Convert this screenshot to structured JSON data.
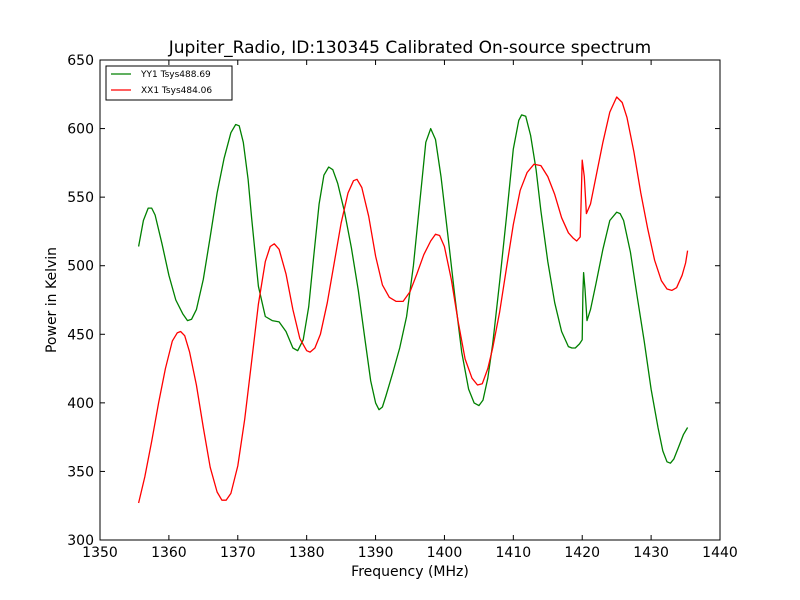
{
  "chart_data": {
    "type": "line",
    "title": "Jupiter_Radio, ID:130345 Calibrated On-source spectrum",
    "xlabel": "Frequency (MHz)",
    "ylabel": "Power in Kelvin",
    "xlim": [
      1350,
      1440
    ],
    "ylim": [
      300,
      650
    ],
    "xticks": [
      1350,
      1360,
      1370,
      1380,
      1390,
      1400,
      1410,
      1420,
      1430,
      1440
    ],
    "yticks": [
      300,
      350,
      400,
      450,
      500,
      550,
      600,
      650
    ],
    "grid": false,
    "legend_position": "top-left",
    "series": [
      {
        "name": "YY1 Tsys488.69",
        "color": "#008000",
        "points": [
          [
            1355.6,
            514
          ],
          [
            1356.3,
            533
          ],
          [
            1357.0,
            542
          ],
          [
            1357.5,
            542
          ],
          [
            1358.0,
            537
          ],
          [
            1359.0,
            516
          ],
          [
            1360.0,
            493
          ],
          [
            1361.0,
            475
          ],
          [
            1362.0,
            465
          ],
          [
            1362.7,
            460
          ],
          [
            1363.3,
            461
          ],
          [
            1364.0,
            468
          ],
          [
            1365.0,
            490
          ],
          [
            1366.0,
            521
          ],
          [
            1367.0,
            553
          ],
          [
            1368.0,
            578
          ],
          [
            1369.0,
            597
          ],
          [
            1369.7,
            603
          ],
          [
            1370.2,
            602
          ],
          [
            1370.8,
            590
          ],
          [
            1371.5,
            563
          ],
          [
            1372.0,
            535
          ],
          [
            1373.0,
            485
          ],
          [
            1374.0,
            463
          ],
          [
            1375.0,
            460
          ],
          [
            1376.0,
            459
          ],
          [
            1377.0,
            452
          ],
          [
            1378.0,
            440
          ],
          [
            1378.7,
            438
          ],
          [
            1379.5,
            446
          ],
          [
            1380.3,
            470
          ],
          [
            1381.0,
            506
          ],
          [
            1381.8,
            545
          ],
          [
            1382.5,
            566
          ],
          [
            1383.2,
            572
          ],
          [
            1383.8,
            570
          ],
          [
            1384.5,
            560
          ],
          [
            1385.5,
            539
          ],
          [
            1386.5,
            513
          ],
          [
            1387.5,
            482
          ],
          [
            1388.5,
            445
          ],
          [
            1389.3,
            416
          ],
          [
            1390.0,
            400
          ],
          [
            1390.5,
            395
          ],
          [
            1391.0,
            397
          ],
          [
            1391.5,
            405
          ],
          [
            1392.5,
            422
          ],
          [
            1393.5,
            440
          ],
          [
            1394.5,
            463
          ],
          [
            1395.5,
            500
          ],
          [
            1396.5,
            550
          ],
          [
            1397.3,
            590
          ],
          [
            1398.0,
            600
          ],
          [
            1398.7,
            592
          ],
          [
            1399.5,
            565
          ],
          [
            1400.5,
            522
          ],
          [
            1401.5,
            478
          ],
          [
            1402.5,
            437
          ],
          [
            1403.5,
            410
          ],
          [
            1404.3,
            400
          ],
          [
            1405.0,
            398
          ],
          [
            1405.6,
            402
          ],
          [
            1406.3,
            418
          ],
          [
            1407.0,
            443
          ],
          [
            1408.0,
            488
          ],
          [
            1409.0,
            535
          ],
          [
            1410.0,
            585
          ],
          [
            1410.8,
            606
          ],
          [
            1411.2,
            610
          ],
          [
            1411.8,
            609
          ],
          [
            1412.5,
            595
          ],
          [
            1413.3,
            570
          ],
          [
            1414.0,
            540
          ],
          [
            1415.0,
            503
          ],
          [
            1416.0,
            473
          ],
          [
            1417.0,
            452
          ],
          [
            1418.0,
            441
          ],
          [
            1418.5,
            440
          ],
          [
            1419.0,
            440
          ],
          [
            1419.6,
            443
          ],
          [
            1420.0,
            446
          ],
          [
            1420.1,
            480
          ],
          [
            1420.2,
            495
          ],
          [
            1420.4,
            483
          ],
          [
            1420.7,
            460
          ],
          [
            1421.2,
            468
          ],
          [
            1422.0,
            487
          ],
          [
            1423.0,
            512
          ],
          [
            1424.0,
            533
          ],
          [
            1425.0,
            539
          ],
          [
            1425.5,
            538
          ],
          [
            1426.0,
            533
          ],
          [
            1427.0,
            510
          ],
          [
            1428.0,
            477
          ],
          [
            1429.0,
            445
          ],
          [
            1430.0,
            410
          ],
          [
            1431.0,
            382
          ],
          [
            1431.7,
            365
          ],
          [
            1432.3,
            357
          ],
          [
            1432.8,
            356
          ],
          [
            1433.3,
            359
          ],
          [
            1434.0,
            368
          ],
          [
            1434.7,
            377
          ],
          [
            1435.3,
            382
          ]
        ]
      },
      {
        "name": "XX1 Tsys484.06",
        "color": "#ff0000",
        "points": [
          [
            1355.6,
            327
          ],
          [
            1356.5,
            346
          ],
          [
            1357.5,
            372
          ],
          [
            1358.5,
            400
          ],
          [
            1359.5,
            425
          ],
          [
            1360.5,
            445
          ],
          [
            1361.2,
            451
          ],
          [
            1361.7,
            452
          ],
          [
            1362.3,
            449
          ],
          [
            1363.0,
            437
          ],
          [
            1364.0,
            413
          ],
          [
            1365.0,
            382
          ],
          [
            1366.0,
            353
          ],
          [
            1367.0,
            335
          ],
          [
            1367.7,
            329
          ],
          [
            1368.3,
            329
          ],
          [
            1369.0,
            334
          ],
          [
            1370.0,
            354
          ],
          [
            1371.0,
            388
          ],
          [
            1372.0,
            430
          ],
          [
            1373.0,
            472
          ],
          [
            1374.0,
            503
          ],
          [
            1374.7,
            514
          ],
          [
            1375.3,
            516
          ],
          [
            1376.0,
            512
          ],
          [
            1377.0,
            494
          ],
          [
            1378.0,
            468
          ],
          [
            1379.0,
            447
          ],
          [
            1380.0,
            438
          ],
          [
            1380.5,
            437
          ],
          [
            1381.2,
            440
          ],
          [
            1382.0,
            450
          ],
          [
            1383.0,
            473
          ],
          [
            1384.0,
            502
          ],
          [
            1385.0,
            531
          ],
          [
            1386.0,
            553
          ],
          [
            1386.8,
            562
          ],
          [
            1387.3,
            563
          ],
          [
            1388.0,
            557
          ],
          [
            1389.0,
            536
          ],
          [
            1390.0,
            507
          ],
          [
            1391.0,
            486
          ],
          [
            1392.0,
            477
          ],
          [
            1393.0,
            474
          ],
          [
            1394.0,
            474
          ],
          [
            1395.0,
            481
          ],
          [
            1396.0,
            494
          ],
          [
            1397.0,
            508
          ],
          [
            1398.0,
            518
          ],
          [
            1398.7,
            523
          ],
          [
            1399.3,
            522
          ],
          [
            1400.0,
            514
          ],
          [
            1401.0,
            490
          ],
          [
            1402.0,
            459
          ],
          [
            1403.0,
            432
          ],
          [
            1404.0,
            418
          ],
          [
            1404.8,
            413
          ],
          [
            1405.5,
            414
          ],
          [
            1406.3,
            425
          ],
          [
            1407.0,
            440
          ],
          [
            1408.0,
            466
          ],
          [
            1409.0,
            498
          ],
          [
            1410.0,
            530
          ],
          [
            1411.0,
            555
          ],
          [
            1412.0,
            568
          ],
          [
            1413.0,
            574
          ],
          [
            1414.0,
            573
          ],
          [
            1415.0,
            565
          ],
          [
            1416.0,
            552
          ],
          [
            1417.0,
            535
          ],
          [
            1418.0,
            524
          ],
          [
            1418.7,
            520
          ],
          [
            1419.2,
            518
          ],
          [
            1419.7,
            521
          ],
          [
            1420.0,
            577
          ],
          [
            1420.3,
            565
          ],
          [
            1420.6,
            538
          ],
          [
            1421.2,
            545
          ],
          [
            1422.0,
            565
          ],
          [
            1423.0,
            590
          ],
          [
            1424.0,
            612
          ],
          [
            1425.0,
            623
          ],
          [
            1425.8,
            619
          ],
          [
            1426.5,
            608
          ],
          [
            1427.5,
            583
          ],
          [
            1428.5,
            553
          ],
          [
            1429.5,
            527
          ],
          [
            1430.5,
            504
          ],
          [
            1431.5,
            489
          ],
          [
            1432.3,
            483
          ],
          [
            1433.0,
            482
          ],
          [
            1433.7,
            484
          ],
          [
            1434.5,
            493
          ],
          [
            1435.0,
            502
          ],
          [
            1435.3,
            511
          ]
        ]
      }
    ]
  }
}
